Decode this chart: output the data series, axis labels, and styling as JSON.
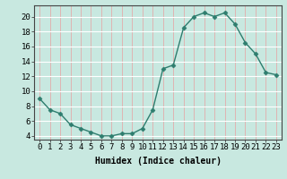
{
  "x": [
    0,
    1,
    2,
    3,
    4,
    5,
    6,
    7,
    8,
    9,
    10,
    11,
    12,
    13,
    14,
    15,
    16,
    17,
    18,
    19,
    20,
    21,
    22,
    23
  ],
  "y": [
    9,
    7.5,
    7,
    5.5,
    5,
    4.5,
    4,
    4,
    4.3,
    4.3,
    5,
    7.5,
    13,
    13.5,
    18.5,
    20,
    20.5,
    20,
    20.5,
    19,
    16.5,
    15,
    12.5,
    12.2
  ],
  "line_color": "#2e7d6e",
  "marker": "D",
  "markersize": 2.5,
  "bg_color": "#c8e8e0",
  "grid_color_x": "#e8a0a0",
  "grid_color_y": "#ffffff",
  "xlabel": "Humidex (Indice chaleur)",
  "xlim": [
    -0.5,
    23.5
  ],
  "ylim": [
    3.5,
    21.5
  ],
  "yticks": [
    4,
    6,
    8,
    10,
    12,
    14,
    16,
    18,
    20
  ],
  "xticks": [
    0,
    1,
    2,
    3,
    4,
    5,
    6,
    7,
    8,
    9,
    10,
    11,
    12,
    13,
    14,
    15,
    16,
    17,
    18,
    19,
    20,
    21,
    22,
    23
  ],
  "xtick_labels": [
    "0",
    "1",
    "2",
    "3",
    "4",
    "5",
    "6",
    "7",
    "8",
    "9",
    "10",
    "11",
    "12",
    "13",
    "14",
    "15",
    "16",
    "17",
    "18",
    "19",
    "20",
    "21",
    "22",
    "23"
  ],
  "xlabel_fontsize": 7,
  "tick_fontsize": 6.5
}
